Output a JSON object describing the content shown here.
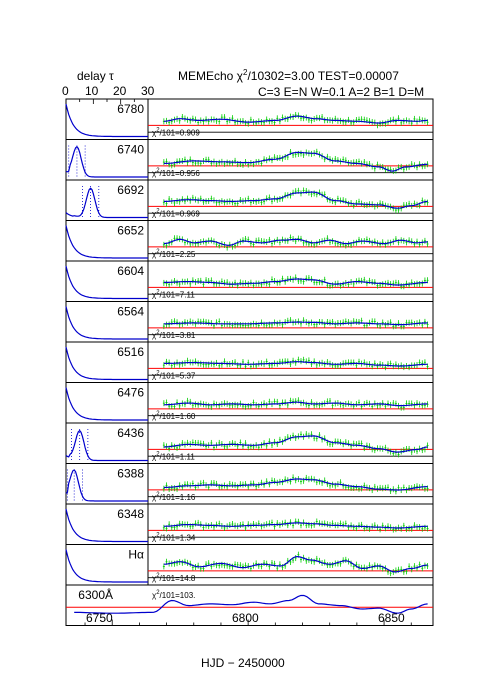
{
  "header": {
    "delay_label": "delay τ",
    "delay_ticks": [
      "0",
      "10",
      "20",
      "30"
    ],
    "title_prefix": "MEMEcho χ",
    "title_sup": "2",
    "title_suffix": "/10302=3.00 TEST=0.00007",
    "params": "C=3 E=N W=0.1 A=2 B=1 D=M"
  },
  "xaxis": {
    "label": "HJD − 2450000",
    "ticks": [
      "6750",
      "6800",
      "6850"
    ]
  },
  "colors": {
    "model": "#0000cc",
    "data": "#00cc00",
    "reference": "#ff0000",
    "delay_marker": "#0000cc"
  },
  "chart_data": {
    "type": "line",
    "title": "MEMEcho χ2/10302=3.00 TEST=0.00007",
    "xlabel": "HJD − 2450000",
    "xlim": [
      6733,
      6868
    ],
    "delay_xlim": [
      0,
      30
    ],
    "panels": [
      {
        "label": "6780",
        "chi2": "101=0.909",
        "kernel": "single",
        "peak": 0,
        "amp": 0.22,
        "model": [
          [
            6769,
            0
          ],
          [
            6775,
            0.15
          ],
          [
            6782,
            0.05
          ],
          [
            6790,
            0.12
          ],
          [
            6800,
            -0.05
          ],
          [
            6810,
            0.05
          ],
          [
            6818,
            0.3
          ],
          [
            6825,
            0.15
          ],
          [
            6832,
            0.05
          ],
          [
            6840,
            0.0
          ],
          [
            6848,
            -0.1
          ],
          [
            6855,
            0.05
          ],
          [
            6862,
            0.0
          ],
          [
            6866,
            0.05
          ]
        ]
      },
      {
        "label": "6740",
        "chi2": "101=0.956",
        "kernel": "double",
        "peak": 4,
        "amp": 0.3,
        "model": [
          [
            6769,
            -0.1
          ],
          [
            6780,
            0.05
          ],
          [
            6790,
            0.0
          ],
          [
            6800,
            -0.05
          ],
          [
            6810,
            0.15
          ],
          [
            6818,
            0.55
          ],
          [
            6824,
            0.5
          ],
          [
            6832,
            0.05
          ],
          [
            6840,
            -0.1
          ],
          [
            6848,
            -0.3
          ],
          [
            6853,
            -0.55
          ],
          [
            6858,
            -0.3
          ],
          [
            6866,
            -0.15
          ]
        ]
      },
      {
        "label": "6692",
        "chi2": "101=0.969",
        "kernel": "double",
        "peak": 9,
        "amp": 0.3,
        "model": [
          [
            6769,
            0.05
          ],
          [
            6778,
            0.15
          ],
          [
            6786,
            0.1
          ],
          [
            6794,
            0.05
          ],
          [
            6802,
            0.1
          ],
          [
            6810,
            0.2
          ],
          [
            6818,
            0.55
          ],
          [
            6824,
            0.6
          ],
          [
            6832,
            0.1
          ],
          [
            6840,
            -0.1
          ],
          [
            6848,
            -0.15
          ],
          [
            6855,
            -0.35
          ],
          [
            6860,
            -0.2
          ],
          [
            6866,
            0.05
          ]
        ]
      },
      {
        "label": "6652",
        "chi2": "101=2.25",
        "kernel": "single",
        "peak": 0,
        "amp": 0.25,
        "model": [
          [
            6769,
            -0.05
          ],
          [
            6775,
            0.2
          ],
          [
            6780,
            0.0
          ],
          [
            6786,
            0.1
          ],
          [
            6793,
            -0.15
          ],
          [
            6798,
            0.1
          ],
          [
            6805,
            0.0
          ],
          [
            6812,
            0.15
          ],
          [
            6818,
            0.2
          ],
          [
            6824,
            0.0
          ],
          [
            6830,
            0.15
          ],
          [
            6836,
            -0.05
          ],
          [
            6842,
            0.1
          ],
          [
            6850,
            -0.05
          ],
          [
            6856,
            0.15
          ],
          [
            6862,
            0.0
          ],
          [
            6866,
            0.05
          ]
        ]
      },
      {
        "label": "6604",
        "chi2": "101=7.11",
        "kernel": "single",
        "peak": 0,
        "amp": 0.25,
        "model": [
          [
            6769,
            0.05
          ],
          [
            6778,
            0.1
          ],
          [
            6786,
            0.05
          ],
          [
            6794,
            -0.05
          ],
          [
            6802,
            0.0
          ],
          [
            6810,
            0.1
          ],
          [
            6818,
            0.25
          ],
          [
            6824,
            0.2
          ],
          [
            6832,
            -0.05
          ],
          [
            6840,
            0.1
          ],
          [
            6848,
            0.0
          ],
          [
            6855,
            -0.1
          ],
          [
            6866,
            0.05
          ]
        ]
      },
      {
        "label": "6564",
        "chi2": "101=3.81",
        "kernel": "single",
        "peak": 0,
        "amp": 0.2,
        "model": [
          [
            6769,
            0.0
          ],
          [
            6780,
            0.05
          ],
          [
            6790,
            0.0
          ],
          [
            6800,
            0.0
          ],
          [
            6810,
            0.05
          ],
          [
            6818,
            0.1
          ],
          [
            6824,
            0.08
          ],
          [
            6832,
            0.0
          ],
          [
            6840,
            0.05
          ],
          [
            6848,
            0.0
          ],
          [
            6856,
            -0.05
          ],
          [
            6866,
            0.05
          ]
        ]
      },
      {
        "label": "6516",
        "chi2": "101=5.37",
        "kernel": "single",
        "peak": 0,
        "amp": 0.2,
        "model": [
          [
            6769,
            0.05
          ],
          [
            6780,
            0.1
          ],
          [
            6790,
            0.05
          ],
          [
            6800,
            0.0
          ],
          [
            6810,
            0.05
          ],
          [
            6818,
            0.15
          ],
          [
            6824,
            0.1
          ],
          [
            6832,
            0.0
          ],
          [
            6840,
            0.05
          ],
          [
            6848,
            -0.05
          ],
          [
            6856,
            -0.1
          ],
          [
            6866,
            0.0
          ]
        ]
      },
      {
        "label": "6476",
        "chi2": "101=1.60",
        "kernel": "single",
        "peak": 0,
        "amp": 0.2,
        "model": [
          [
            6769,
            0.0
          ],
          [
            6778,
            0.1
          ],
          [
            6786,
            0.0
          ],
          [
            6794,
            0.05
          ],
          [
            6802,
            0.0
          ],
          [
            6810,
            0.05
          ],
          [
            6818,
            0.15
          ],
          [
            6824,
            0.05
          ],
          [
            6832,
            0.1
          ],
          [
            6840,
            0.0
          ],
          [
            6848,
            0.05
          ],
          [
            6856,
            -0.05
          ],
          [
            6866,
            0.05
          ]
        ]
      },
      {
        "label": "6436",
        "chi2": "101=1.11",
        "kernel": "double",
        "peak": 5,
        "amp": 0.3,
        "model": [
          [
            6769,
            -0.1
          ],
          [
            6778,
            0.05
          ],
          [
            6786,
            0.0
          ],
          [
            6794,
            0.05
          ],
          [
            6802,
            0.0
          ],
          [
            6810,
            0.15
          ],
          [
            6818,
            0.5
          ],
          [
            6824,
            0.55
          ],
          [
            6832,
            0.15
          ],
          [
            6840,
            0.0
          ],
          [
            6848,
            -0.2
          ],
          [
            6855,
            -0.4
          ],
          [
            6862,
            -0.25
          ],
          [
            6866,
            -0.1
          ]
        ]
      },
      {
        "label": "6388",
        "chi2": "101=1.16",
        "kernel": "double",
        "peak": 3,
        "amp": 0.3,
        "model": [
          [
            6769,
            -0.1
          ],
          [
            6778,
            0.0
          ],
          [
            6786,
            0.05
          ],
          [
            6794,
            0.0
          ],
          [
            6802,
            0.05
          ],
          [
            6810,
            0.2
          ],
          [
            6818,
            0.4
          ],
          [
            6824,
            0.35
          ],
          [
            6832,
            0.1
          ],
          [
            6840,
            -0.05
          ],
          [
            6848,
            -0.2
          ],
          [
            6855,
            -0.25
          ],
          [
            6866,
            -0.05
          ]
        ]
      },
      {
        "label": "6348",
        "chi2": "101=1.34",
        "kernel": "single",
        "peak": 0,
        "amp": 0.25,
        "model": [
          [
            6769,
            0.0
          ],
          [
            6778,
            0.1
          ],
          [
            6786,
            0.05
          ],
          [
            6794,
            0.0
          ],
          [
            6802,
            0.05
          ],
          [
            6810,
            0.1
          ],
          [
            6818,
            0.2
          ],
          [
            6824,
            0.15
          ],
          [
            6832,
            0.05
          ],
          [
            6840,
            0.0
          ],
          [
            6848,
            -0.05
          ],
          [
            6855,
            -0.1
          ],
          [
            6866,
            0.0
          ]
        ]
      },
      {
        "label": "Hα",
        "chi2": "101=14.8",
        "kernel": "single",
        "peak": 0,
        "amp": 0.3,
        "model": [
          [
            6769,
            0.15
          ],
          [
            6775,
            0.3
          ],
          [
            6782,
            0.0
          ],
          [
            6790,
            0.2
          ],
          [
            6798,
            -0.05
          ],
          [
            6805,
            0.15
          ],
          [
            6812,
            0.05
          ],
          [
            6818,
            0.6
          ],
          [
            6823,
            0.4
          ],
          [
            6830,
            0.15
          ],
          [
            6836,
            0.35
          ],
          [
            6842,
            -0.1
          ],
          [
            6848,
            0.05
          ],
          [
            6854,
            -0.3
          ],
          [
            6860,
            -0.1
          ],
          [
            6866,
            0.1
          ]
        ]
      },
      {
        "label": "6300Å",
        "chi2": "101=103.",
        "kernel": "none",
        "peak": 0,
        "amp": 0.0,
        "model": [
          [
            6736,
            -0.3
          ],
          [
            6750,
            -0.35
          ],
          [
            6765,
            -0.3
          ],
          [
            6772,
            0.4
          ],
          [
            6778,
            0.1
          ],
          [
            6786,
            0.2
          ],
          [
            6794,
            0.15
          ],
          [
            6802,
            0.3
          ],
          [
            6808,
            0.2
          ],
          [
            6815,
            0.4
          ],
          [
            6820,
            0.7
          ],
          [
            6826,
            0.2
          ],
          [
            6834,
            0.1
          ],
          [
            6842,
            -0.1
          ],
          [
            6848,
            -0.05
          ],
          [
            6855,
            -0.35
          ],
          [
            6860,
            -0.1
          ],
          [
            6866,
            0.2
          ]
        ]
      }
    ]
  }
}
